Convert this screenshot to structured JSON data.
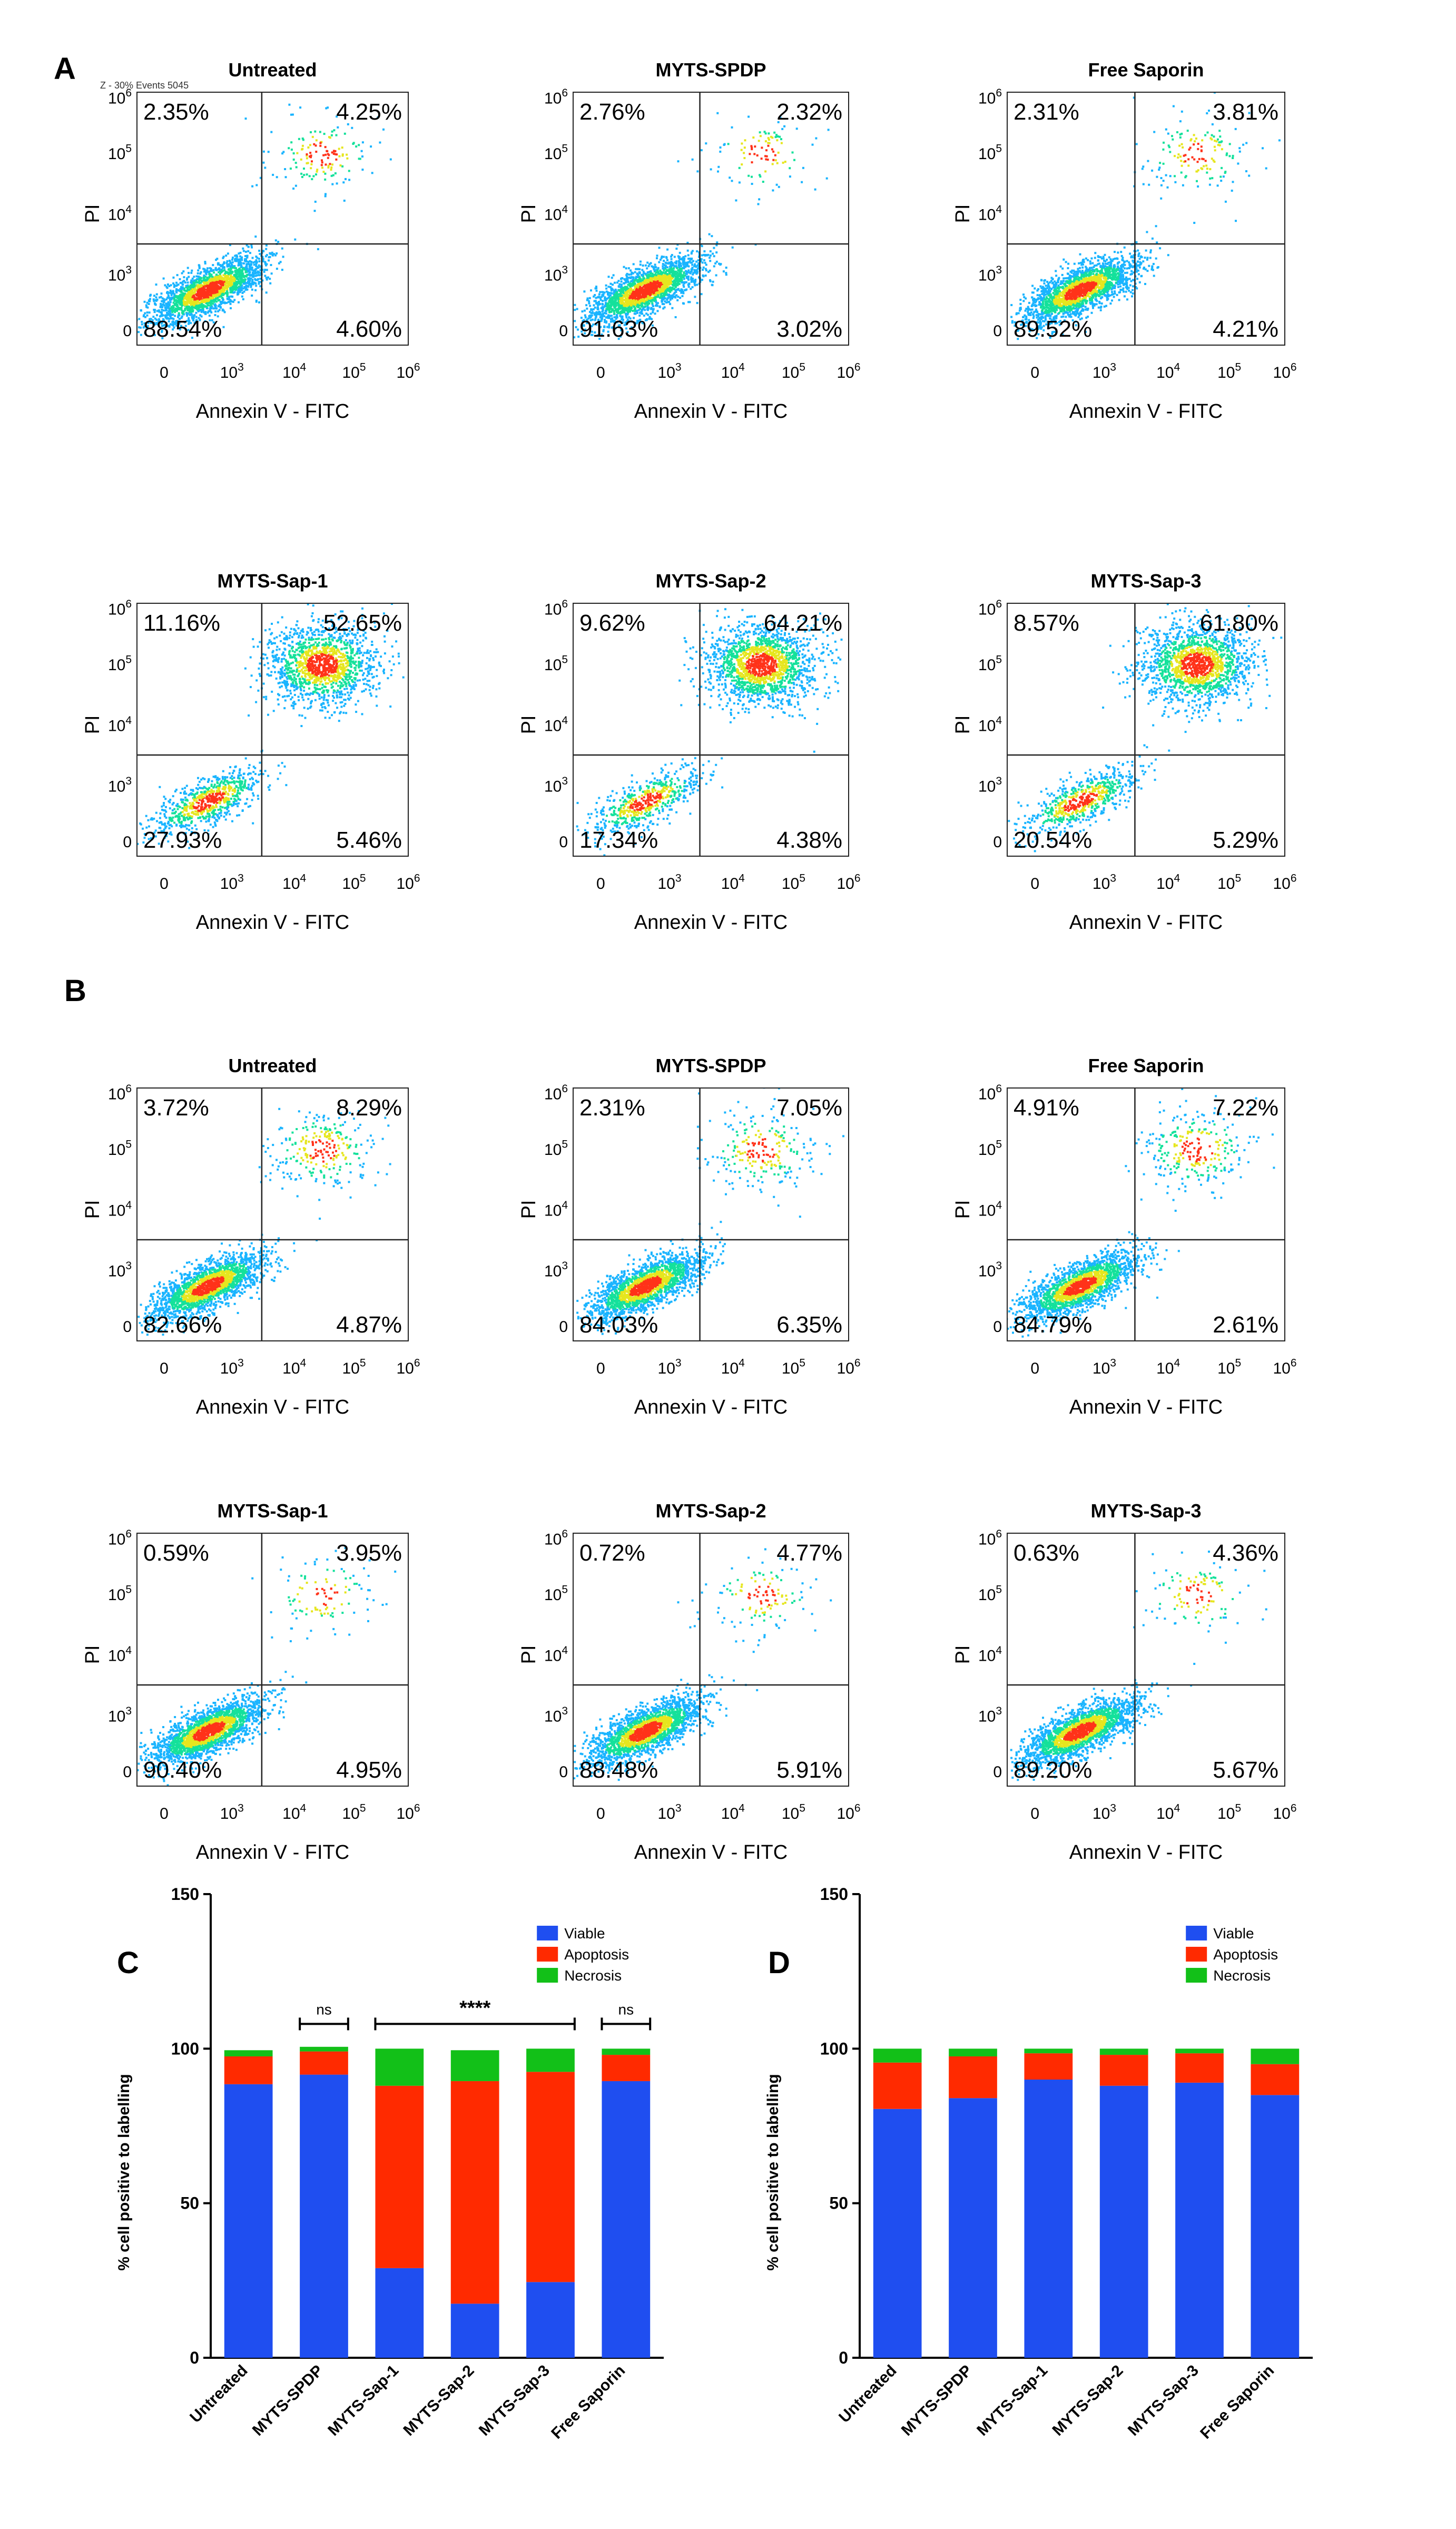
{
  "panel_letters": [
    "A",
    "B",
    "C",
    "D"
  ],
  "flow_axes": {
    "xlabel": "Annexin V  -  FITC",
    "ylabel": "PI",
    "x_ticks": [
      "0",
      "10^3",
      "10^4",
      "10^5",
      "10^6"
    ],
    "y_ticks": [
      "0",
      "10^3",
      "10^4",
      "10^5",
      "10^6"
    ]
  },
  "panel_a_header_text": "Z - 30% Events 5045",
  "chart_data": [
    {
      "type": "scatter",
      "panel": "A",
      "plots": [
        {
          "title": "Untreated",
          "quadrants": {
            "ul": "2.35%",
            "ur": "4.25%",
            "ll": "88.54%",
            "lr": "4.60%"
          }
        },
        {
          "title": "MYTS-SPDP",
          "quadrants": {
            "ul": "2.76%",
            "ur": "2.32%",
            "ll": "91.63%",
            "lr": "3.02%"
          }
        },
        {
          "title": "Free Saporin",
          "quadrants": {
            "ul": "2.31%",
            "ur": "3.81%",
            "ll": "89.52%",
            "lr": "4.21%"
          }
        },
        {
          "title": "MYTS-Sap-1",
          "quadrants": {
            "ul": "11.16%",
            "ur": "52.65%",
            "ll": "27.93%",
            "lr": "5.46%"
          }
        },
        {
          "title": "MYTS-Sap-2",
          "quadrants": {
            "ul": "9.62%",
            "ur": "64.21%",
            "ll": "17.34%",
            "lr": "4.38%"
          }
        },
        {
          "title": "MYTS-Sap-3",
          "quadrants": {
            "ul": "8.57%",
            "ur": "61.80%",
            "ll": "20.54%",
            "lr": "5.29%"
          }
        }
      ]
    },
    {
      "type": "scatter",
      "panel": "B",
      "plots": [
        {
          "title": "Untreated",
          "quadrants": {
            "ul": "3.72%",
            "ur": "8.29%",
            "ll": "82.66%",
            "lr": "4.87%"
          }
        },
        {
          "title": "MYTS-SPDP",
          "quadrants": {
            "ul": "2.31%",
            "ur": "7.05%",
            "ll": "84.03%",
            "lr": "6.35%"
          }
        },
        {
          "title": "Free Saporin",
          "quadrants": {
            "ul": "4.91%",
            "ur": "7.22%",
            "ll": "84.79%",
            "lr": "2.61%"
          }
        },
        {
          "title": "MYTS-Sap-1",
          "quadrants": {
            "ul": "0.59%",
            "ur": "3.95%",
            "ll": "90.40%",
            "lr": "4.95%"
          }
        },
        {
          "title": "MYTS-Sap-2",
          "quadrants": {
            "ul": "0.72%",
            "ur": "4.77%",
            "ll": "88.48%",
            "lr": "5.91%"
          }
        },
        {
          "title": "MYTS-Sap-3",
          "quadrants": {
            "ul": "0.63%",
            "ur": "4.36%",
            "ll": "89.20%",
            "lr": "5.67%"
          }
        }
      ]
    },
    {
      "type": "bar",
      "stacked": true,
      "panel": "C",
      "ylabel": "% cell positive to labelling",
      "ylim": [
        0,
        150
      ],
      "yticks": [
        "0",
        "50",
        "100",
        "150"
      ],
      "categories": [
        "Untreated",
        "MYTS-SPDP",
        "MYTS-Sap-1",
        "MYTS-Sap-2",
        "MYTS-Sap-3",
        "Free Saporin"
      ],
      "series": [
        {
          "name": "Viable",
          "color": "#1f4ef0",
          "values": [
            88.5,
            91.6,
            29.0,
            17.5,
            24.5,
            89.5
          ]
        },
        {
          "name": "Apoptosis",
          "color": "#ff2a00",
          "values": [
            9.0,
            7.5,
            59.0,
            72.0,
            68.0,
            8.5
          ]
        },
        {
          "name": "Necrosis",
          "color": "#12c018",
          "values": [
            2.0,
            1.5,
            12.0,
            10.0,
            7.5,
            2.0
          ]
        }
      ],
      "significance": [
        {
          "label": "ns",
          "from": 1,
          "to": 1
        },
        {
          "label": "****",
          "from": 2,
          "to": 4
        },
        {
          "label": "ns",
          "from": 5,
          "to": 5
        }
      ],
      "legend": "top-right"
    },
    {
      "type": "bar",
      "stacked": true,
      "panel": "D",
      "ylabel": "% cell positive to labelling",
      "ylim": [
        0,
        150
      ],
      "yticks": [
        "0",
        "50",
        "100",
        "150"
      ],
      "categories": [
        "Untreated",
        "MYTS-SPDP",
        "MYTS-Sap-1",
        "MYTS-Sap-2",
        "MYTS-Sap-3",
        "Free Saporin"
      ],
      "series": [
        {
          "name": "Viable",
          "color": "#1f4ef0",
          "values": [
            80.5,
            84.0,
            90.0,
            88.0,
            89.0,
            85.0
          ]
        },
        {
          "name": "Apoptosis",
          "color": "#ff2a00",
          "values": [
            15.0,
            13.5,
            8.5,
            10.0,
            9.5,
            10.0
          ]
        },
        {
          "name": "Necrosis",
          "color": "#12c018",
          "values": [
            4.5,
            2.5,
            1.5,
            2.0,
            1.5,
            5.0
          ]
        }
      ],
      "legend": "top-right"
    }
  ]
}
